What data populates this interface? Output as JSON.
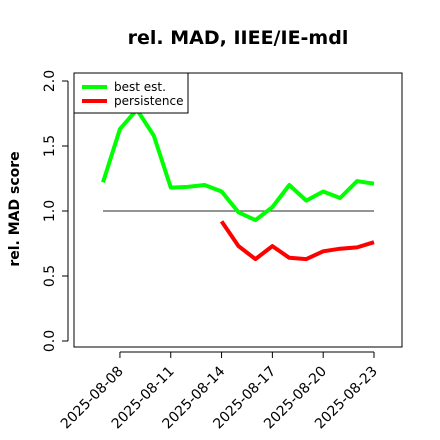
{
  "chart_data": {
    "type": "line",
    "title": "rel. MAD, IIEE/IE-mdl",
    "xlabel": "",
    "ylabel": "rel. MAD score",
    "ylim": [
      0,
      2
    ],
    "yticks": [
      "0.0",
      "0.5",
      "1.0",
      "1.5",
      "2.0"
    ],
    "xticks": [
      "2025-08-08",
      "2025-08-11",
      "2025-08-14",
      "2025-08-17",
      "2025-08-20",
      "2025-08-23"
    ],
    "x": [
      "2025-08-07",
      "2025-08-08",
      "2025-08-09",
      "2025-08-10",
      "2025-08-11",
      "2025-08-12",
      "2025-08-13",
      "2025-08-14",
      "2025-08-15",
      "2025-08-16",
      "2025-08-17",
      "2025-08-18",
      "2025-08-19",
      "2025-08-20",
      "2025-08-21",
      "2025-08-22",
      "2025-08-23"
    ],
    "reference_line": 1.0,
    "grid": false,
    "legend_position": "top-left",
    "series": [
      {
        "name": "best est.",
        "color": "#00ff00",
        "values": [
          1.22,
          1.63,
          1.78,
          1.58,
          1.18,
          1.185,
          1.2,
          1.15,
          0.99,
          0.93,
          1.03,
          1.2,
          1.08,
          1.15,
          1.1,
          1.23,
          1.21
        ]
      },
      {
        "name": "persistence",
        "color": "#ff0000",
        "values": [
          null,
          null,
          null,
          null,
          null,
          null,
          null,
          0.92,
          0.73,
          0.63,
          0.73,
          0.64,
          0.63,
          0.69,
          0.71,
          0.72,
          0.76
        ]
      }
    ]
  }
}
